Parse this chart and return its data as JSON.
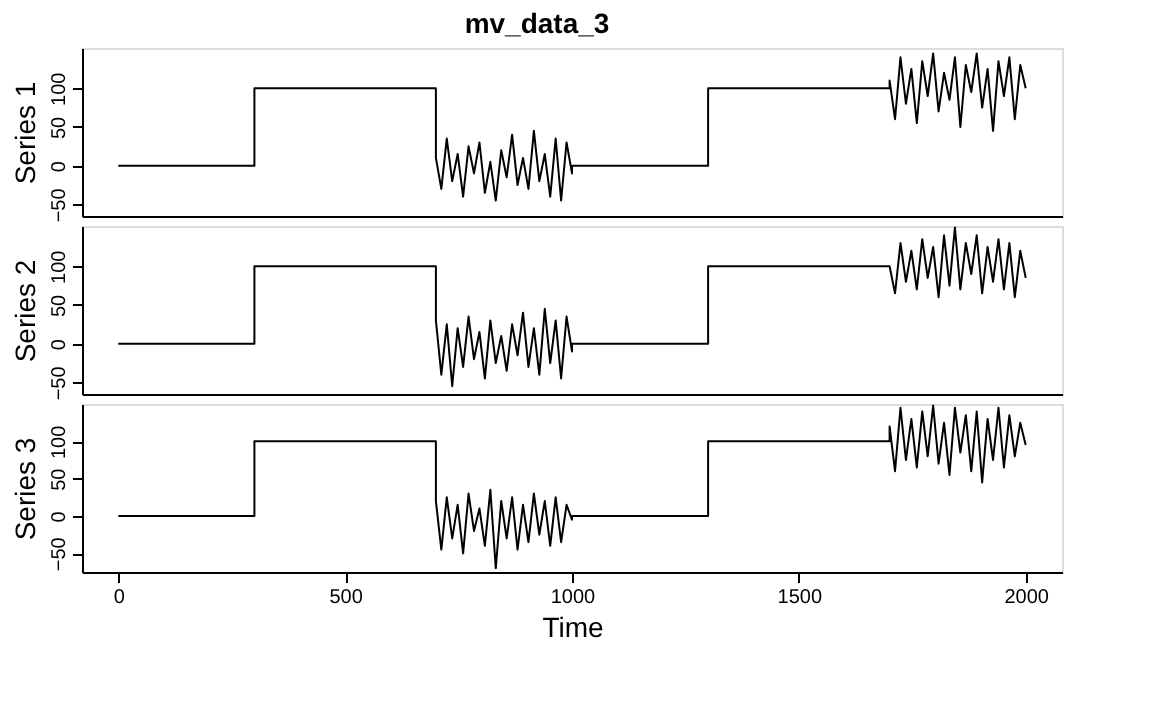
{
  "chart_data": [
    {
      "type": "line",
      "title": "mv_data_3",
      "ylabel": "Series 1",
      "tick_labels": "y",
      "xlim": [
        -80,
        2080
      ],
      "ylim": [
        -65,
        152
      ],
      "yticks": [
        -50,
        0,
        50,
        100
      ],
      "grid": false,
      "legend": false,
      "x": [
        0,
        300,
        300,
        700,
        700,
        712,
        724,
        736,
        748,
        760,
        772,
        784,
        796,
        808,
        820,
        832,
        844,
        856,
        868,
        880,
        892,
        904,
        916,
        928,
        940,
        952,
        964,
        976,
        988,
        1000,
        1000,
        1300,
        1300,
        1700,
        1700,
        1712,
        1724,
        1736,
        1748,
        1760,
        1772,
        1784,
        1796,
        1808,
        1820,
        1832,
        1844,
        1856,
        1868,
        1880,
        1892,
        1904,
        1916,
        1928,
        1940,
        1952,
        1964,
        1976,
        1988,
        2000
      ],
      "series": [
        {
          "color": "#000000",
          "values": [
            0,
            0,
            100,
            100,
            10,
            -30,
            35,
            -20,
            15,
            -40,
            25,
            -10,
            30,
            -35,
            5,
            -45,
            20,
            -15,
            40,
            -25,
            10,
            -30,
            45,
            -20,
            15,
            -40,
            35,
            -45,
            30,
            -10,
            0,
            0,
            100,
            100,
            110,
            60,
            140,
            80,
            125,
            55,
            135,
            90,
            145,
            70,
            120,
            85,
            140,
            50,
            130,
            95,
            145,
            75,
            125,
            45,
            135,
            90,
            140,
            60,
            130,
            100
          ]
        }
      ]
    },
    {
      "type": "line",
      "ylabel": "Series 2",
      "tick_labels": "y",
      "xlim": [
        -80,
        2080
      ],
      "ylim": [
        -65,
        152
      ],
      "yticks": [
        -50,
        0,
        50,
        100
      ],
      "grid": false,
      "legend": false,
      "x": [
        0,
        300,
        300,
        700,
        700,
        712,
        724,
        736,
        748,
        760,
        772,
        784,
        796,
        808,
        820,
        832,
        844,
        856,
        868,
        880,
        892,
        904,
        916,
        928,
        940,
        952,
        964,
        976,
        988,
        1000,
        1000,
        1300,
        1300,
        1700,
        1700,
        1712,
        1724,
        1736,
        1748,
        1760,
        1772,
        1784,
        1796,
        1808,
        1820,
        1832,
        1844,
        1856,
        1868,
        1880,
        1892,
        1904,
        1916,
        1928,
        1940,
        1952,
        1964,
        1976,
        1988,
        2000
      ],
      "series": [
        {
          "color": "#000000",
          "values": [
            0,
            0,
            100,
            100,
            30,
            -40,
            25,
            -55,
            20,
            -30,
            35,
            -20,
            15,
            -45,
            30,
            -25,
            10,
            -35,
            25,
            -15,
            40,
            -30,
            20,
            -40,
            45,
            -25,
            30,
            -45,
            35,
            -10,
            0,
            0,
            100,
            100,
            100,
            65,
            130,
            80,
            120,
            70,
            135,
            85,
            125,
            60,
            140,
            75,
            150,
            70,
            130,
            90,
            140,
            65,
            125,
            80,
            135,
            70,
            130,
            60,
            120,
            85
          ]
        }
      ]
    },
    {
      "type": "line",
      "ylabel": "Series 3",
      "xlabel": "Time",
      "xlim": [
        -80,
        2080
      ],
      "ylim": [
        -75,
        150
      ],
      "xticks": [
        0,
        500,
        1000,
        1500,
        2000
      ],
      "yticks": [
        -50,
        0,
        50,
        100
      ],
      "grid": false,
      "legend": false,
      "x": [
        0,
        300,
        300,
        700,
        700,
        712,
        724,
        736,
        748,
        760,
        772,
        784,
        796,
        808,
        820,
        832,
        844,
        856,
        868,
        880,
        892,
        904,
        916,
        928,
        940,
        952,
        964,
        976,
        988,
        1000,
        1000,
        1300,
        1300,
        1700,
        1700,
        1712,
        1724,
        1736,
        1748,
        1760,
        1772,
        1784,
        1796,
        1808,
        1820,
        1832,
        1844,
        1856,
        1868,
        1880,
        1892,
        1904,
        1916,
        1928,
        1940,
        1952,
        1964,
        1976,
        1988,
        2000
      ],
      "series": [
        {
          "color": "#000000",
          "values": [
            0,
            0,
            100,
            100,
            20,
            -45,
            25,
            -30,
            15,
            -50,
            30,
            -20,
            10,
            -40,
            35,
            -70,
            20,
            -30,
            25,
            -45,
            15,
            -35,
            30,
            -25,
            20,
            -40,
            25,
            -35,
            15,
            -5,
            0,
            0,
            100,
            100,
            120,
            60,
            145,
            75,
            130,
            65,
            140,
            80,
            148,
            70,
            125,
            55,
            145,
            85,
            135,
            60,
            140,
            45,
            130,
            75,
            145,
            65,
            135,
            80,
            125,
            95
          ]
        }
      ]
    }
  ]
}
